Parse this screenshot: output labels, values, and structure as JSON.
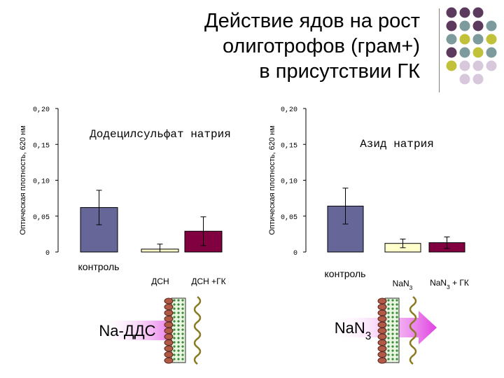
{
  "title": {
    "line1": "Действие ядов на рост",
    "line2": "олиготрофов (грам+)",
    "line3": "в присутствии ГК"
  },
  "chart_data": [
    {
      "type": "bar",
      "title": "Додецилсульфат натрия",
      "ylabel": "Оптическая плотность, 620 нм",
      "ylim": [
        0,
        0.2
      ],
      "yticks": [
        "0",
        "0,05",
        "0,10",
        "0,15",
        "0,20"
      ],
      "categories": [
        "контроль",
        "ДСН",
        "ДСН +ГК"
      ],
      "values": [
        0.062,
        0.004,
        0.029
      ],
      "errors": [
        0.024,
        0.007,
        0.02
      ],
      "colors": [
        "#666699",
        "#ffffcc",
        "#800040"
      ]
    },
    {
      "type": "bar",
      "title": "Азид натрия",
      "ylabel": "Оптическая плотность, 620 нм",
      "ylim": [
        0,
        0.2
      ],
      "yticks": [
        "0",
        "0,05",
        "0,10",
        "0,15",
        "0,20"
      ],
      "categories": [
        "контроль",
        "NaN3",
        "NaN3 + ГК"
      ],
      "values": [
        0.064,
        0.012,
        0.013
      ],
      "errors": [
        0.025,
        0.006,
        0.008
      ],
      "colors": [
        "#666699",
        "#ffffcc",
        "#800040"
      ]
    }
  ],
  "diagrams": {
    "left_label": "Na-ДДС",
    "right_label": "NaN3"
  },
  "colors": {
    "dot_purple": "#5c3a5e",
    "dot_teal": "#7d9b9c",
    "dot_olive": "#c2c13a",
    "dot_lavender": "#d8c8dc",
    "arrow": "#e040e0",
    "membrane": "#3a8a3a"
  }
}
